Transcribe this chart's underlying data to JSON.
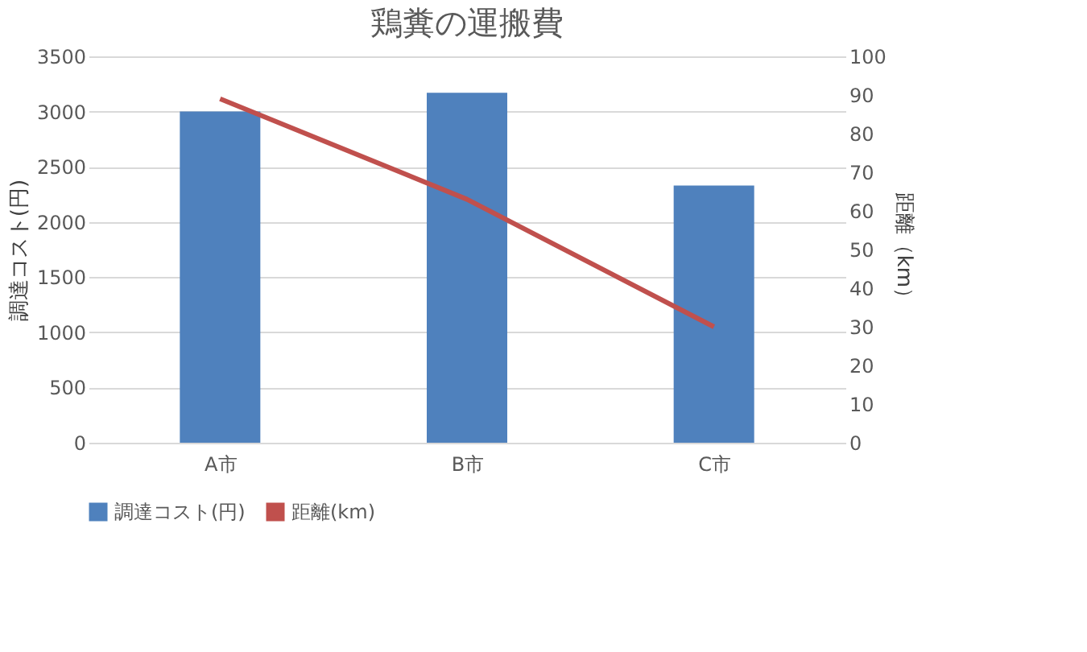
{
  "chart_data": {
    "type": "bar",
    "title": "鶏糞の運搬費",
    "ylabel": "調達コスト(円)",
    "y2label": "距離（km）",
    "categories": [
      "A市",
      "B市",
      "C市"
    ],
    "series": [
      {
        "name": "調達コスト(円)",
        "color": "#4f81bd",
        "values": [
          3000,
          3170,
          2330
        ]
      },
      {
        "name": "距離(km)",
        "type": "line",
        "axis": "y2",
        "color": "#c0504d",
        "values": [
          89,
          63,
          30
        ]
      }
    ],
    "ylim": [
      0,
      3500
    ],
    "yticks": [
      0,
      500,
      1000,
      1500,
      2000,
      2500,
      3000,
      3500
    ],
    "y2lim": [
      0,
      100
    ],
    "y2ticks": [
      0,
      10,
      20,
      30,
      40,
      50,
      60,
      70,
      80,
      90,
      100
    ],
    "grid": "y",
    "legend": "bottom"
  }
}
